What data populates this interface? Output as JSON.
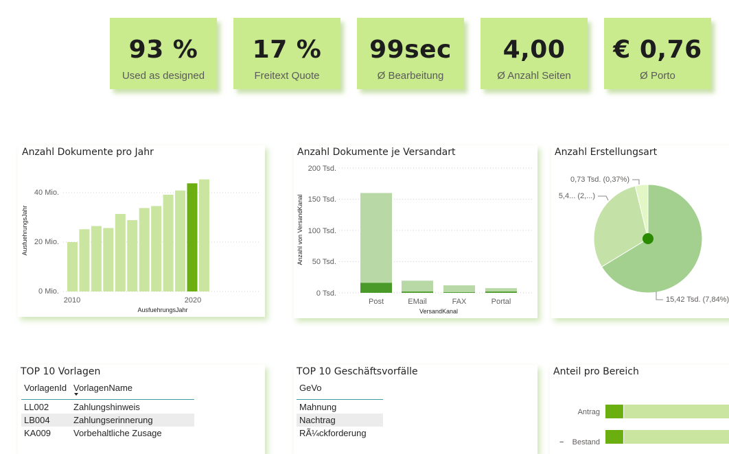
{
  "kpis": [
    {
      "value": "93 %",
      "label": "Used as designed"
    },
    {
      "value": "17 %",
      "label": "Freitext Quote"
    },
    {
      "value": "99sec",
      "label": "Ø Bearbeitung"
    },
    {
      "value": "4,00",
      "label": "Ø Anzahl Seiten"
    },
    {
      "value": "€ 0,76",
      "label": "Ø Porto"
    }
  ],
  "colors": {
    "kpi_bg": "#c9eb8e",
    "bar_light": "#c9e5a0",
    "bar_dark": "#6aae10",
    "versand_light": "#b8d8a6",
    "versand_dark": "#4a9a2a",
    "pie_main": "#a3d08f",
    "pie_second": "#c4e2a8",
    "pie_small": "#e3f7c6"
  },
  "chart1": {
    "title": "Anzahl Dokumente pro Jahr",
    "chart_data": {
      "type": "bar",
      "title": "Anzahl Dokumente pro Jahr",
      "xlabel": "AusfuehrungsJahr",
      "ylabel": "AusfuehrungsJahr",
      "ytick_labels": [
        "0 Mio.",
        "20 Mio.",
        "40 Mio."
      ],
      "xtick_labels": [
        "2010",
        "2020"
      ],
      "ylim": [
        0,
        50
      ],
      "x": [
        2010,
        2011,
        2012,
        2013,
        2014,
        2015,
        2016,
        2017,
        2018,
        2019,
        2020,
        2021
      ],
      "values": [
        20,
        25.2,
        26.5,
        25.7,
        31.4,
        28.9,
        33.8,
        34.6,
        39.2,
        40.9,
        43.8,
        45.4
      ],
      "highlight_x": 2020,
      "grid": true
    }
  },
  "chart2": {
    "title": "Anzahl Dokumente je Versandart",
    "chart_data": {
      "type": "bar",
      "title": "Anzahl Dokumente je Versandart",
      "xlabel": "VersandKanal",
      "ylabel": "Anzahl von VersandKanal",
      "ytick_labels": [
        "0 Tsd.",
        "50 Tsd.",
        "100 Tsd.",
        "150 Tsd.",
        "200 Tsd."
      ],
      "ylim": [
        0,
        200
      ],
      "categories": [
        "Post",
        "EMail",
        "FAX",
        "Portal"
      ],
      "series": [
        {
          "values": [
            16,
            2,
            1,
            2
          ]
        },
        {
          "values": [
            160,
            19.5,
            12,
            7.5
          ]
        }
      ],
      "grid": true
    }
  },
  "chart3": {
    "title": "Anzahl Erstellungsart",
    "chart_data": {
      "type": "pie",
      "title": "Anzahl Erstellungsart",
      "slices": [
        {
          "label": "15,42 Tsd. (7,84%)",
          "value": 66.3
        },
        {
          "label": "5,4... (2,...)",
          "value": 29.9
        },
        {
          "label": "0,73 Tsd. (0,37%)",
          "value": 3.8
        }
      ]
    }
  },
  "table1": {
    "title": "TOP 10 Vorlagen",
    "headers": [
      "VorlagenId",
      "VorlagenName"
    ],
    "rows": [
      [
        "LL002",
        "Zahlungshinweis"
      ],
      [
        "LB004",
        "Zahlungserinnerung"
      ],
      [
        "KA009",
        "Vorbehaltliche Zusage"
      ]
    ]
  },
  "table2": {
    "title": "TOP 10 Geschäftsvorfälle",
    "headers": [
      "GeVo"
    ],
    "rows": [
      [
        "Mahnung"
      ],
      [
        "Nachtrag"
      ],
      [
        "RÃ¼ckforderung"
      ]
    ]
  },
  "chart4": {
    "title": "Anteil pro Bereich",
    "chart_data": {
      "type": "bar",
      "title": "Anteil pro Bereich",
      "orientation": "horizontal",
      "categories": [
        "Antrag",
        "Bestand"
      ],
      "series": [
        {
          "values": [
            14,
            14
          ]
        },
        {
          "values": [
            86,
            86
          ]
        }
      ]
    }
  }
}
